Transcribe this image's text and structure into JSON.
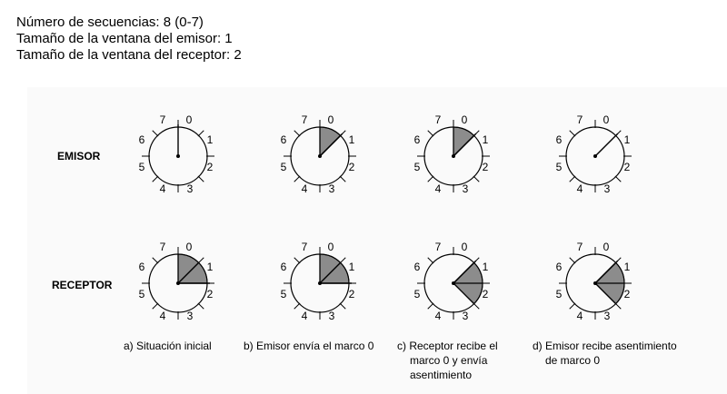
{
  "intro": {
    "line1": "Número de secuencias: 8 (0-7)",
    "line2": "Tamaño de la ventana del emisor: 1",
    "line3": "Tamaño de la ventana del receptor: 2"
  },
  "rows": {
    "emisor": "EMISOR",
    "receptor": "RECEPTOR"
  },
  "dial_labels": [
    "0",
    "1",
    "2",
    "3",
    "4",
    "5",
    "6",
    "7"
  ],
  "captions": {
    "a": "a) Situación inicial",
    "b": "b) Emisor envía el marco 0",
    "c1": "c) Receptor recibe el",
    "c2": "marco 0 y envía",
    "c3": "asentimiento",
    "d1": "d) Emisor recibe asentimiento",
    "d2": "de marco 0"
  },
  "colors": {
    "window_fill": "#8c8c8c",
    "stroke": "#000000"
  },
  "dials": [
    {
      "row": "emisor",
      "step": "a",
      "window": [],
      "pointer": 0
    },
    {
      "row": "emisor",
      "step": "b",
      "window": [
        0
      ],
      "pointer": 1
    },
    {
      "row": "emisor",
      "step": "c",
      "window": [
        0
      ],
      "pointer": 1
    },
    {
      "row": "emisor",
      "step": "d",
      "window": [],
      "pointer": 1
    },
    {
      "row": "receptor",
      "step": "a",
      "window": [
        0,
        1
      ],
      "pointer": 2
    },
    {
      "row": "receptor",
      "step": "b",
      "window": [
        0,
        1
      ],
      "pointer": 2
    },
    {
      "row": "receptor",
      "step": "c",
      "window": [
        1,
        2
      ],
      "pointer": 1
    },
    {
      "row": "receptor",
      "step": "d",
      "window": [
        1,
        2
      ],
      "pointer": 1
    }
  ]
}
